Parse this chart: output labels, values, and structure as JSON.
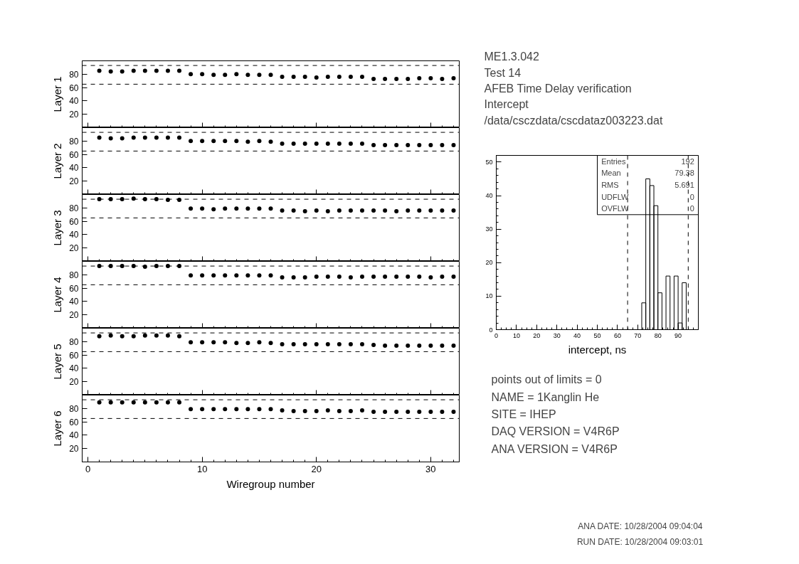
{
  "chart_data": [
    {
      "type": "scatter",
      "ylabel": "Layer 1",
      "x": [
        1,
        2,
        3,
        4,
        5,
        6,
        7,
        8,
        9,
        10,
        11,
        12,
        13,
        14,
        15,
        16,
        17,
        18,
        19,
        20,
        21,
        22,
        23,
        24,
        25,
        26,
        27,
        28,
        29,
        30,
        31,
        32
      ],
      "values": [
        85,
        84,
        84,
        85,
        85,
        85,
        85,
        85,
        80,
        80,
        79,
        79,
        80,
        79,
        79,
        79,
        76,
        76,
        76,
        75,
        76,
        76,
        76,
        76,
        73,
        73,
        73,
        73,
        74,
        74,
        73,
        74
      ],
      "color": "#000000",
      "marker": "circle",
      "xlim": [
        -0.5,
        32.5
      ],
      "ylim": [
        0,
        100
      ],
      "xticks": [
        0,
        10,
        20,
        30
      ],
      "yticks": [
        20,
        40,
        60,
        80
      ],
      "tick_labels": "y",
      "ref_lines": [
        {
          "axis": "y",
          "value": 65,
          "line_style": "dashed"
        },
        {
          "axis": "y",
          "value": 93,
          "line_style": "dashed"
        }
      ]
    },
    {
      "type": "scatter",
      "ylabel": "Layer 2",
      "x": [
        1,
        2,
        3,
        4,
        5,
        6,
        7,
        8,
        9,
        10,
        11,
        12,
        13,
        14,
        15,
        16,
        17,
        18,
        19,
        20,
        21,
        22,
        23,
        24,
        25,
        26,
        27,
        28,
        29,
        30,
        31,
        32
      ],
      "values": [
        85,
        84,
        84,
        85,
        85,
        85,
        85,
        85,
        80,
        80,
        80,
        80,
        80,
        79,
        80,
        79,
        76,
        76,
        76,
        76,
        76,
        76,
        76,
        76,
        74,
        74,
        74,
        74,
        74,
        74,
        74,
        74
      ],
      "color": "#000000",
      "marker": "circle",
      "xlim": [
        -0.5,
        32.5
      ],
      "ylim": [
        0,
        100
      ],
      "xticks": [
        0,
        10,
        20,
        30
      ],
      "yticks": [
        20,
        40,
        60,
        80
      ],
      "tick_labels": "y",
      "ref_lines": [
        {
          "axis": "y",
          "value": 65,
          "line_style": "dashed"
        },
        {
          "axis": "y",
          "value": 93,
          "line_style": "dashed"
        }
      ]
    },
    {
      "type": "scatter",
      "ylabel": "Layer 3",
      "x": [
        1,
        2,
        3,
        4,
        5,
        6,
        7,
        8,
        9,
        10,
        11,
        12,
        13,
        14,
        15,
        16,
        17,
        18,
        19,
        20,
        21,
        22,
        23,
        24,
        25,
        26,
        27,
        28,
        29,
        30,
        31,
        32
      ],
      "values": [
        93,
        93,
        93,
        94,
        93,
        93,
        92,
        92,
        79,
        79,
        78,
        79,
        79,
        79,
        79,
        79,
        76,
        76,
        75,
        76,
        75,
        76,
        76,
        76,
        76,
        76,
        75,
        76,
        76,
        76,
        76,
        76
      ],
      "color": "#000000",
      "marker": "circle",
      "xlim": [
        -0.5,
        32.5
      ],
      "ylim": [
        0,
        100
      ],
      "xticks": [
        0,
        10,
        20,
        30
      ],
      "yticks": [
        20,
        40,
        60,
        80
      ],
      "tick_labels": "y",
      "ref_lines": [
        {
          "axis": "y",
          "value": 65,
          "line_style": "dashed"
        },
        {
          "axis": "y",
          "value": 93,
          "line_style": "dashed"
        }
      ]
    },
    {
      "type": "scatter",
      "ylabel": "Layer 4",
      "x": [
        1,
        2,
        3,
        4,
        5,
        6,
        7,
        8,
        9,
        10,
        11,
        12,
        13,
        14,
        15,
        16,
        17,
        18,
        19,
        20,
        21,
        22,
        23,
        24,
        25,
        26,
        27,
        28,
        29,
        30,
        31,
        32
      ],
      "values": [
        93,
        93,
        93,
        93,
        92,
        93,
        93,
        93,
        79,
        79,
        79,
        79,
        79,
        79,
        79,
        79,
        76,
        76,
        76,
        77,
        77,
        77,
        76,
        77,
        77,
        77,
        77,
        77,
        77,
        76,
        77,
        77
      ],
      "color": "#000000",
      "marker": "circle",
      "xlim": [
        -0.5,
        32.5
      ],
      "ylim": [
        0,
        100
      ],
      "xticks": [
        0,
        10,
        20,
        30
      ],
      "yticks": [
        20,
        40,
        60,
        80
      ],
      "tick_labels": "y",
      "ref_lines": [
        {
          "axis": "y",
          "value": 65,
          "line_style": "dashed"
        },
        {
          "axis": "y",
          "value": 93,
          "line_style": "dashed"
        }
      ]
    },
    {
      "type": "scatter",
      "ylabel": "Layer 5",
      "x": [
        1,
        2,
        3,
        4,
        5,
        6,
        7,
        8,
        9,
        10,
        11,
        12,
        13,
        14,
        15,
        16,
        17,
        18,
        19,
        20,
        21,
        22,
        23,
        24,
        25,
        26,
        27,
        28,
        29,
        30,
        31,
        32
      ],
      "values": [
        88,
        89,
        88,
        88,
        89,
        89,
        89,
        88,
        79,
        79,
        79,
        79,
        78,
        78,
        79,
        78,
        76,
        76,
        76,
        76,
        76,
        76,
        76,
        76,
        75,
        74,
        74,
        74,
        74,
        74,
        74,
        74
      ],
      "color": "#000000",
      "marker": "circle",
      "xlim": [
        -0.5,
        32.5
      ],
      "ylim": [
        0,
        100
      ],
      "xticks": [
        0,
        10,
        20,
        30
      ],
      "yticks": [
        20,
        40,
        60,
        80
      ],
      "tick_labels": "y",
      "ref_lines": [
        {
          "axis": "y",
          "value": 65,
          "line_style": "dashed"
        },
        {
          "axis": "y",
          "value": 93,
          "line_style": "dashed"
        }
      ]
    },
    {
      "type": "scatter",
      "ylabel": "Layer 6",
      "xlabel": "Wiregroup number",
      "x": [
        1,
        2,
        3,
        4,
        5,
        6,
        7,
        8,
        9,
        10,
        11,
        12,
        13,
        14,
        15,
        16,
        17,
        18,
        19,
        20,
        21,
        22,
        23,
        24,
        25,
        26,
        27,
        28,
        29,
        30,
        31,
        32
      ],
      "values": [
        89,
        89,
        89,
        89,
        89,
        89,
        89,
        89,
        79,
        79,
        79,
        79,
        79,
        79,
        79,
        79,
        77,
        76,
        76,
        76,
        77,
        76,
        76,
        77,
        75,
        75,
        75,
        75,
        75,
        75,
        75,
        75
      ],
      "color": "#000000",
      "marker": "circle",
      "xlim": [
        -0.5,
        32.5
      ],
      "ylim": [
        0,
        100
      ],
      "xticks": [
        0,
        10,
        20,
        30
      ],
      "yticks": [
        20,
        40,
        60,
        80
      ],
      "ref_lines": [
        {
          "axis": "y",
          "value": 65,
          "line_style": "dashed"
        },
        {
          "axis": "y",
          "value": 93,
          "line_style": "dashed"
        }
      ]
    },
    {
      "type": "other",
      "annotations": [
        "ME1.3.042",
        "Test 14",
        "AFEB Time Delay verification",
        "Intercept",
        "/data/csczdata/cscdataz003223.dat"
      ]
    },
    {
      "type": "histogram",
      "xlabel": "intercept, ns",
      "bins": [
        72,
        74,
        76,
        78,
        80,
        82,
        84,
        86,
        88,
        90,
        92,
        94
      ],
      "values": [
        8,
        45,
        43,
        37,
        11,
        0,
        16,
        0,
        16,
        2,
        14
      ],
      "color": "#000000",
      "xlim": [
        0,
        100
      ],
      "ylim": [
        0,
        52
      ],
      "xticks": [
        0,
        10,
        20,
        30,
        40,
        50,
        60,
        70,
        80,
        90
      ],
      "yticks": [
        0,
        10,
        20,
        30,
        40,
        50
      ],
      "ref_lines": [
        {
          "axis": "x",
          "value": 65,
          "line_style": "dashed"
        },
        {
          "axis": "x",
          "value": 95,
          "line_style": "dashed"
        }
      ],
      "annotations": [
        "Entries",
        "192",
        "Mean",
        "79.38",
        "RMS",
        "5.691",
        "UDFLW",
        "0",
        "OVFLW",
        "0"
      ]
    },
    {
      "type": "other",
      "annotations": [
        "points out of limits = 0",
        "NAME =  1Kanglin He",
        "SITE =     IHEP",
        "DAQ VERSION =     V4R6P",
        "ANA VERSION =     V4R6P"
      ]
    },
    {
      "type": "other",
      "annotations": [
        "ANA DATE:  10/28/2004 09:04:04",
        "RUN DATE:  10/28/2004 09:03:01"
      ]
    }
  ]
}
